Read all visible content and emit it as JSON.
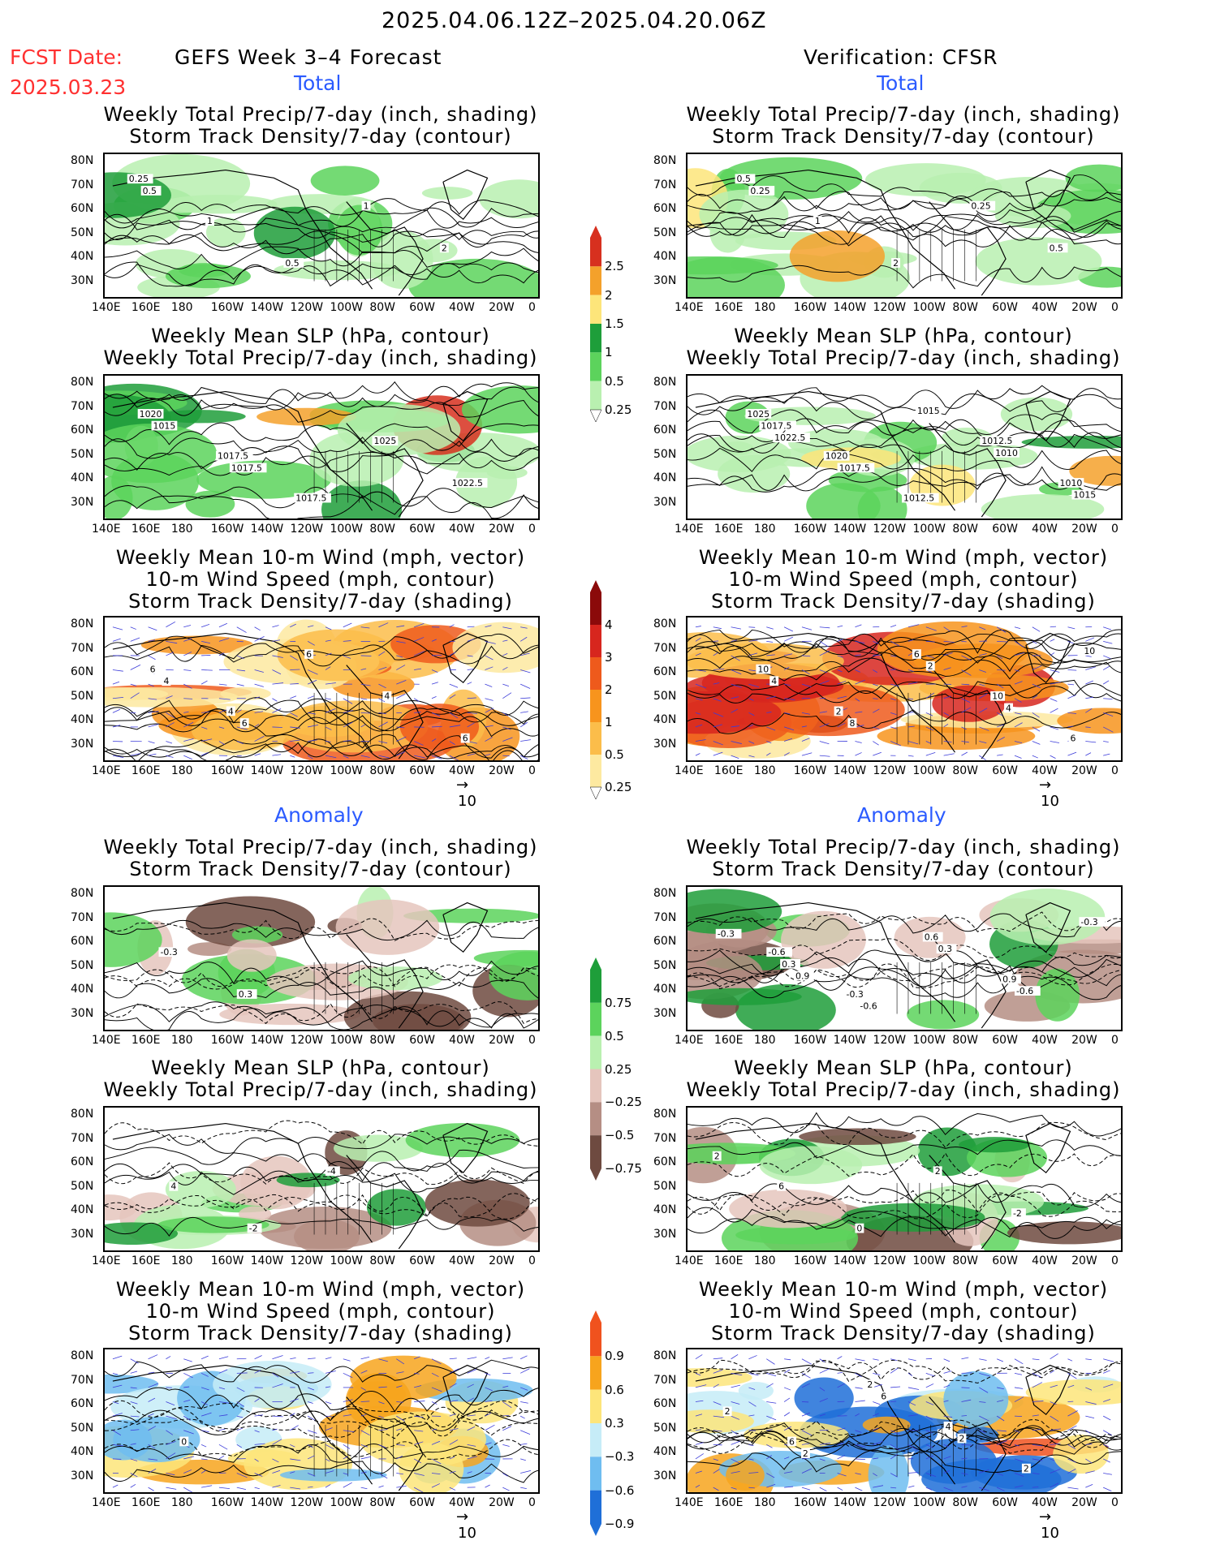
{
  "header": {
    "valid_range": "2025.04.06.12Z–2025.04.20.06Z",
    "fcst_label": "FCST Date:",
    "fcst_date": "2025.03.23",
    "left_title": "GEFS Week 3–4 Forecast",
    "right_title": "Verification: CFSR"
  },
  "sections": {
    "total": "Total",
    "anomaly": "Anomaly"
  },
  "panel_titles": {
    "precip_storm": [
      "Weekly Total Precip/7-day (inch, shading)",
      "Storm Track Density/7-day (contour)"
    ],
    "slp_precip": [
      "Weekly Mean SLP (hPa, contour)",
      "Weekly Total Precip/7-day (inch, shading)"
    ],
    "wind_storm": [
      "Weekly Mean 10-m Wind (mph, vector)",
      "10-m Wind Speed (mph, contour)",
      "Storm Track Density/7-day (shading)"
    ]
  },
  "axes": {
    "lat_labels": [
      "80N",
      "70N",
      "60N",
      "50N",
      "40N",
      "30N"
    ],
    "lon_labels": [
      "140E",
      "160E",
      "180",
      "160W",
      "140W",
      "120W",
      "100W",
      "80W",
      "60W",
      "40W",
      "20W",
      "0"
    ]
  },
  "vector_ref": "10",
  "colorbars": {
    "precip_total": {
      "labels": [
        "2.5",
        "2",
        "1.5",
        "1",
        "0.5",
        "0.25"
      ],
      "colors": [
        "#d7301f",
        "#f4a12b",
        "#fde57a",
        "#1e9e3a",
        "#5cd35c",
        "#b9f0b0"
      ]
    },
    "storm_total": {
      "labels": [
        "4",
        "3",
        "2",
        "1",
        "0.5",
        "0.25"
      ],
      "colors": [
        "#8b0a0a",
        "#d7261e",
        "#ee5a1c",
        "#f7941d",
        "#fbbd4a",
        "#fde9a0"
      ]
    },
    "precip_anom": {
      "labels": [
        "0.75",
        "0.5",
        "0.25",
        "−0.25",
        "−0.5",
        "−0.75"
      ],
      "colors": [
        "#1e9e3a",
        "#5cd35c",
        "#b9f0b0",
        "#e5c5bd",
        "#b58e84",
        "#6e4a40"
      ]
    },
    "storm_anom": {
      "labels": [
        "0.9",
        "0.6",
        "0.3",
        "−0.3",
        "−0.6",
        "−0.9"
      ],
      "colors": [
        "#f0521e",
        "#f7a41d",
        "#fde57a",
        "#c6ecf7",
        "#6fbdf0",
        "#1f6fd8"
      ]
    }
  },
  "contour_labels": {
    "fc_total_precip": [
      "0.25",
      "1",
      "0.5",
      "1",
      "2",
      "0.5"
    ],
    "fc_total_slp": [
      "1020",
      "1017.5",
      "1017.5",
      "1025",
      "1022.5",
      "1015",
      "1017.5"
    ],
    "fc_total_wind": [
      "6",
      "4",
      "6",
      "4",
      "6",
      "4",
      "6"
    ],
    "vf_total_precip": [
      "0.5",
      "1",
      "2",
      "0.25",
      "0.5",
      "0.25"
    ],
    "vf_total_slp": [
      "1025",
      "1020",
      "1012.5",
      "1012.5",
      "1010",
      "1017.5",
      "1017.5",
      "1015",
      "1010",
      "1015",
      "1022.5"
    ],
    "vf_total_wind": [
      "10",
      "2",
      "6",
      "10",
      "6",
      "4",
      "8",
      "2",
      "4",
      "10"
    ],
    "fc_anom_precip": [
      "-0.3",
      "0.3"
    ],
    "fc_anom_slp": [
      "4",
      "-2",
      "-4"
    ],
    "fc_anom_wind": [
      "0"
    ],
    "vf_anom_precip": [
      "-0.6",
      "-0.3",
      "0.6",
      "0.9",
      "-0.3",
      "0.3",
      "-0.6",
      "0.3",
      "-0.6",
      "-0.3",
      "0.9"
    ],
    "vf_anom_slp": [
      "6",
      "0",
      "2",
      "-2",
      "2"
    ],
    "vf_anom_wind": [
      "6",
      "2",
      "4",
      "2",
      "2",
      "2",
      "6",
      "2"
    ]
  }
}
